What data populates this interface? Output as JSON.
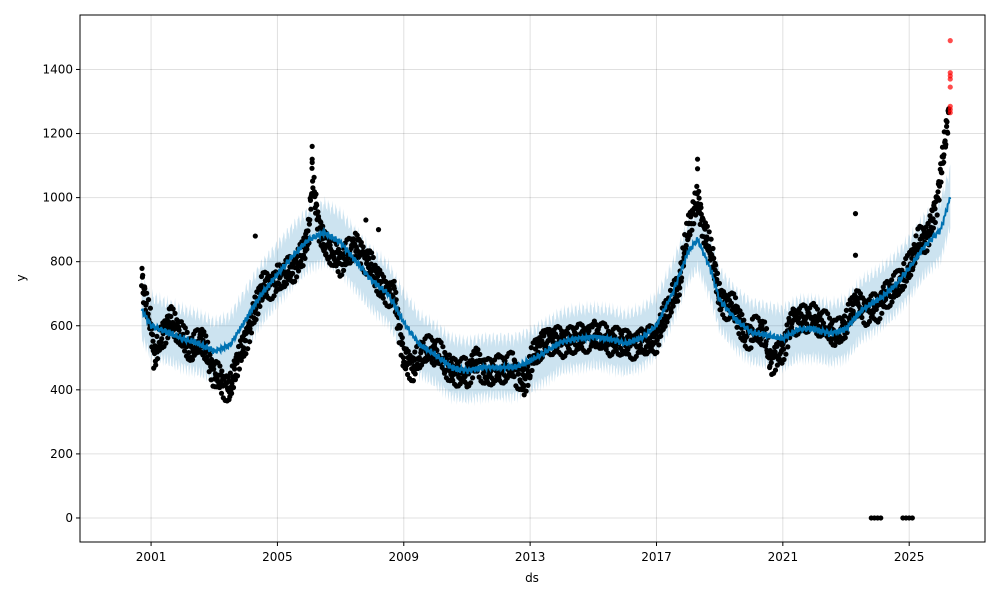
{
  "chart_data": {
    "type": "line",
    "title": "",
    "xlabel": "ds",
    "ylabel": "y",
    "xlim": [
      1998.75,
      2027.4
    ],
    "ylim": [
      -75,
      1570
    ],
    "grid": true,
    "x_ticks": [
      2001,
      2005,
      2009,
      2013,
      2017,
      2021,
      2025
    ],
    "x_tick_labels": [
      "2001",
      "2005",
      "2009",
      "2013",
      "2017",
      "2021",
      "2025"
    ],
    "y_ticks": [
      0,
      200,
      400,
      600,
      800,
      1000,
      1200,
      1400
    ],
    "y_tick_labels": [
      "0",
      "200",
      "400",
      "600",
      "800",
      "1000",
      "1200",
      "1400"
    ],
    "colors": {
      "actual": "#000000",
      "forecast": "#0072B2",
      "interval": "#0072B2",
      "anomaly": "#ff0000"
    },
    "interval_halfwidth": 90,
    "forecast_yhat": [
      [
        2000.7,
        650
      ],
      [
        2001,
        600
      ],
      [
        2001.5,
        580
      ],
      [
        2002,
        560
      ],
      [
        2002.5,
        545
      ],
      [
        2003,
        520
      ],
      [
        2003.5,
        540
      ],
      [
        2004,
        620
      ],
      [
        2004.5,
        700
      ],
      [
        2005,
        760
      ],
      [
        2005.5,
        820
      ],
      [
        2006,
        870
      ],
      [
        2006.5,
        890
      ],
      [
        2007,
        860
      ],
      [
        2007.5,
        800
      ],
      [
        2008,
        740
      ],
      [
        2008.5,
        700
      ],
      [
        2009,
        610
      ],
      [
        2009.5,
        540
      ],
      [
        2010,
        510
      ],
      [
        2010.5,
        470
      ],
      [
        2011,
        460
      ],
      [
        2011.5,
        470
      ],
      [
        2012,
        470
      ],
      [
        2012.5,
        470
      ],
      [
        2013,
        490
      ],
      [
        2013.5,
        520
      ],
      [
        2014,
        550
      ],
      [
        2014.5,
        560
      ],
      [
        2015,
        565
      ],
      [
        2015.5,
        560
      ],
      [
        2016,
        545
      ],
      [
        2016.5,
        560
      ],
      [
        2017,
        600
      ],
      [
        2017.5,
        700
      ],
      [
        2018,
        830
      ],
      [
        2018.3,
        870
      ],
      [
        2018.7,
        780
      ],
      [
        2019,
        680
      ],
      [
        2019.5,
        620
      ],
      [
        2020,
        580
      ],
      [
        2020.5,
        570
      ],
      [
        2021,
        560
      ],
      [
        2021.5,
        590
      ],
      [
        2022,
        590
      ],
      [
        2022.5,
        575
      ],
      [
        2023,
        590
      ],
      [
        2023.5,
        650
      ],
      [
        2024,
        680
      ],
      [
        2024.5,
        720
      ],
      [
        2025,
        780
      ],
      [
        2025.5,
        850
      ],
      [
        2026,
        900
      ],
      [
        2026.3,
        1000
      ]
    ],
    "actual": [
      [
        2000.7,
        760
      ],
      [
        2000.8,
        680
      ],
      [
        2001.0,
        600
      ],
      [
        2001.1,
        500
      ],
      [
        2001.3,
        560
      ],
      [
        2001.6,
        620
      ],
      [
        2002,
        560
      ],
      [
        2002.3,
        520
      ],
      [
        2002.6,
        560
      ],
      [
        2003,
        450
      ],
      [
        2003.3,
        420
      ],
      [
        2003.5,
        400
      ],
      [
        2003.7,
        480
      ],
      [
        2004,
        560
      ],
      [
        2004.3,
        650
      ],
      [
        2004.5,
        720
      ],
      [
        2005,
        740
      ],
      [
        2005.5,
        780
      ],
      [
        2005.8,
        820
      ],
      [
        2006,
        900
      ],
      [
        2006.1,
        1060
      ],
      [
        2006.3,
        920
      ],
      [
        2006.5,
        850
      ],
      [
        2007,
        800
      ],
      [
        2007.5,
        850
      ],
      [
        2008,
        780
      ],
      [
        2008.3,
        720
      ],
      [
        2008.7,
        700
      ],
      [
        2009,
        500
      ],
      [
        2009.3,
        470
      ],
      [
        2009.6,
        520
      ],
      [
        2010,
        520
      ],
      [
        2010.5,
        460
      ],
      [
        2011,
        450
      ],
      [
        2011.3,
        500
      ],
      [
        2011.6,
        450
      ],
      [
        2012,
        460
      ],
      [
        2012.5,
        470
      ],
      [
        2012.8,
        420
      ],
      [
        2013,
        480
      ],
      [
        2013.3,
        540
      ],
      [
        2013.6,
        560
      ],
      [
        2014,
        550
      ],
      [
        2014.5,
        560
      ],
      [
        2015,
        570
      ],
      [
        2015.5,
        555
      ],
      [
        2016,
        545
      ],
      [
        2016.5,
        545
      ],
      [
        2017,
        560
      ],
      [
        2017.3,
        640
      ],
      [
        2017.7,
        720
      ],
      [
        2018,
        900
      ],
      [
        2018.3,
        1000
      ],
      [
        2018.5,
        900
      ],
      [
        2018.8,
        800
      ],
      [
        2019,
        680
      ],
      [
        2019.5,
        650
      ],
      [
        2019.8,
        570
      ],
      [
        2020,
        580
      ],
      [
        2020.4,
        580
      ],
      [
        2020.6,
        490
      ],
      [
        2021,
        530
      ],
      [
        2021.3,
        620
      ],
      [
        2021.6,
        620
      ],
      [
        2022,
        620
      ],
      [
        2022.3,
        600
      ],
      [
        2022.7,
        570
      ],
      [
        2023,
        600
      ],
      [
        2023.3,
        680
      ],
      [
        2023.6,
        650
      ],
      [
        2024,
        660
      ],
      [
        2024.3,
        700
      ],
      [
        2024.6,
        720
      ],
      [
        2025,
        780
      ],
      [
        2025.3,
        860
      ],
      [
        2025.6,
        880
      ],
      [
        2025.9,
        1000
      ],
      [
        2026.1,
        1150
      ],
      [
        2026.25,
        1260
      ]
    ],
    "actual_outliers": [
      [
        2006.1,
        1160
      ],
      [
        2006.1,
        1120
      ],
      [
        2018.3,
        1120
      ],
      [
        2018.3,
        1090
      ],
      [
        2023.3,
        950
      ],
      [
        2023.3,
        820
      ],
      [
        2004.3,
        880
      ],
      [
        2007.8,
        930
      ],
      [
        2008.2,
        900
      ],
      [
        2023.8,
        0
      ],
      [
        2023.9,
        0
      ],
      [
        2024.0,
        0
      ],
      [
        2024.1,
        0
      ],
      [
        2024.8,
        0
      ],
      [
        2024.9,
        0
      ],
      [
        2025.0,
        0
      ],
      [
        2025.1,
        0
      ]
    ],
    "anomalies": [
      [
        2026.3,
        1490
      ],
      [
        2026.3,
        1390
      ],
      [
        2026.3,
        1380
      ],
      [
        2026.3,
        1370
      ],
      [
        2026.3,
        1345
      ],
      [
        2026.3,
        1285
      ],
      [
        2026.3,
        1275
      ],
      [
        2026.3,
        1265
      ]
    ]
  }
}
